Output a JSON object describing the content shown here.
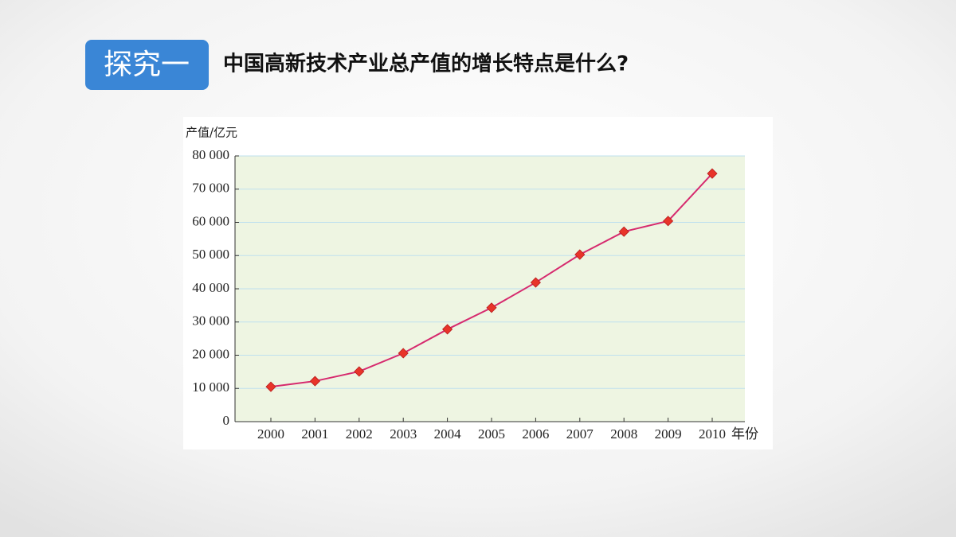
{
  "header": {
    "badge": "探究一",
    "question": "中国高新技术产业总产值的增长特点是什么?"
  },
  "chart_data": {
    "type": "line",
    "y_label": "产值/亿元",
    "x_label": "年份",
    "categories": [
      "2000",
      "2001",
      "2002",
      "2003",
      "2004",
      "2005",
      "2006",
      "2007",
      "2008",
      "2009",
      "2010"
    ],
    "values": [
      10500,
      12200,
      15100,
      20600,
      27800,
      34300,
      41900,
      50300,
      57200,
      60400,
      74700
    ],
    "color": "#d62a6e",
    "marker_color": "#e8342a",
    "ylim": [
      0,
      80000
    ],
    "yticks": [
      0,
      {
        "value": 10000,
        "label": "10 000"
      },
      {
        "value": 20000,
        "label": "20 000"
      },
      {
        "value": 30000,
        "label": "30 000"
      },
      {
        "value": 40000,
        "label": "40 000"
      },
      {
        "value": 50000,
        "label": "50 000"
      },
      {
        "value": 60000,
        "label": "60 000"
      },
      {
        "value": 70000,
        "label": "70 000"
      },
      {
        "value": 80000,
        "label": "80 000"
      }
    ],
    "grid": true
  }
}
